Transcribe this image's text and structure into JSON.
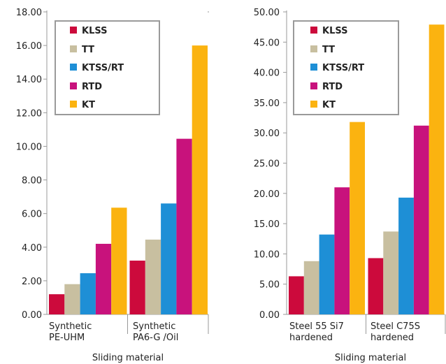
{
  "chart_data": [
    {
      "type": "bar",
      "categories": [
        [
          "Synthetic",
          "PE-UHM"
        ],
        [
          "Synthetic",
          "PA6-G /Oil"
        ]
      ],
      "series": [
        {
          "name": "KLSS",
          "color": "#cc0a3c",
          "values": [
            1.2,
            3.2
          ]
        },
        {
          "name": "TT",
          "color": "#c8bfa0",
          "values": [
            1.8,
            4.45
          ]
        },
        {
          "name": "KTSS/RT",
          "color": "#1e8fd6",
          "values": [
            2.45,
            6.6
          ]
        },
        {
          "name": "RTD",
          "color": "#c8127c",
          "values": [
            4.2,
            10.45
          ]
        },
        {
          "name": "KT",
          "color": "#fbb310",
          "values": [
            6.35,
            16.0
          ]
        }
      ],
      "ylim": [
        0,
        18
      ],
      "yticks": [
        "0.00",
        "2.00",
        "4.00",
        "6.00",
        "8.00",
        "10.00",
        "12.00",
        "14.00",
        "16.00",
        "18.00"
      ],
      "xlabel": "Sliding material",
      "legend": "top-left"
    },
    {
      "type": "bar",
      "categories": [
        [
          "Steel 55 Si7",
          "hardened"
        ],
        [
          "Steel C75S",
          "hardened"
        ]
      ],
      "series": [
        {
          "name": "KLSS",
          "color": "#cc0a3c",
          "values": [
            6.3,
            9.3
          ]
        },
        {
          "name": "TT",
          "color": "#c8bfa0",
          "values": [
            8.8,
            13.7
          ]
        },
        {
          "name": "KTSS/RT",
          "color": "#1e8fd6",
          "values": [
            13.2,
            19.3
          ]
        },
        {
          "name": "RTD",
          "color": "#c8127c",
          "values": [
            21.0,
            31.2
          ]
        },
        {
          "name": "KT",
          "color": "#fbb310",
          "values": [
            31.8,
            47.9
          ]
        }
      ],
      "ylim": [
        0,
        50
      ],
      "yticks": [
        "0.00",
        "5.00",
        "10.00",
        "15.00",
        "20.00",
        "25.00",
        "30.00",
        "35.00",
        "40.00",
        "45.00",
        "50.00"
      ],
      "xlabel": "Sliding material",
      "legend": "top-left"
    }
  ]
}
